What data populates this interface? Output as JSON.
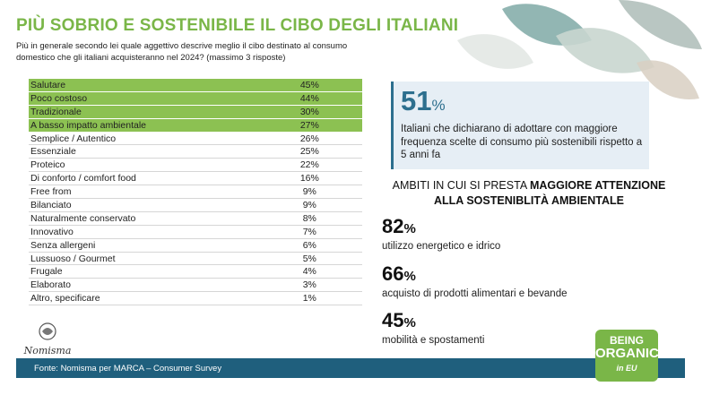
{
  "title": "PIÙ SOBRIO E SOSTENIBILE IL CIBO DEGLI ITALIANI",
  "subtitle": "Più in generale secondo lei quale aggettivo descrive meglio il cibo destinato al consumo domestico che gli italiani acquisteranno nel 2024? (massimo 3 risposte)",
  "table": {
    "rows": [
      {
        "label": "Salutare",
        "value": "45%",
        "highlight": true
      },
      {
        "label": "Poco costoso",
        "value": "44%",
        "highlight": true
      },
      {
        "label": "Tradizionale",
        "value": "30%",
        "highlight": true
      },
      {
        "label": "A basso impatto ambientale",
        "value": "27%",
        "highlight": true
      },
      {
        "label": "Semplice / Autentico",
        "value": "26%",
        "highlight": false
      },
      {
        "label": "Essenziale",
        "value": "25%",
        "highlight": false
      },
      {
        "label": "Proteico",
        "value": "22%",
        "highlight": false
      },
      {
        "label": "Di conforto / comfort food",
        "value": "16%",
        "highlight": false
      },
      {
        "label": "Free from",
        "value": "9%",
        "highlight": false
      },
      {
        "label": "Bilanciato",
        "value": "9%",
        "highlight": false
      },
      {
        "label": "Naturalmente conservato",
        "value": "8%",
        "highlight": false
      },
      {
        "label": "Innovativo",
        "value": "7%",
        "highlight": false
      },
      {
        "label": "Senza allergeni",
        "value": "6%",
        "highlight": false
      },
      {
        "label": "Lussuoso / Gourmet",
        "value": "5%",
        "highlight": false
      },
      {
        "label": "Frugale",
        "value": "4%",
        "highlight": false
      },
      {
        "label": "Elaborato",
        "value": "3%",
        "highlight": false
      },
      {
        "label": "Altro, specificare",
        "value": "1%",
        "highlight": false
      }
    ]
  },
  "stat": {
    "number": "51",
    "percent": "%",
    "description": "Italiani che dichiarano di adottare con maggiore frequenza scelte di consumo più sostenibili rispetto a 5 anni fa"
  },
  "section": {
    "head_normal": "AMBITI IN CUI SI PRESTA ",
    "head_bold_1": "MAGGIORE ATTENZIONE",
    "head_bold_2": "ALLA SOSTENIBLITÀ AMBIENTALE"
  },
  "metrics": [
    {
      "number": "82",
      "percent": "%",
      "text": "utilizzo energetico e idrico"
    },
    {
      "number": "66",
      "percent": "%",
      "text": "acquisto di prodotti alimentari e bevande"
    },
    {
      "number": "45",
      "percent": "%",
      "text": "mobilità e spostamenti"
    }
  ],
  "footer": "Fonte: Nomisma per MARCA – Consumer Survey",
  "logos": {
    "nomisma": "Nomisma",
    "bio_line1": "BEING",
    "bio_line2": "ORGANIC",
    "bio_line3": "in EU"
  },
  "colors": {
    "title_green": "#7ab648",
    "highlight_green": "#8cc152",
    "blue": "#2d6f8e",
    "footer_blue": "#1f5f7d",
    "box_bg": "#e6eef5"
  }
}
